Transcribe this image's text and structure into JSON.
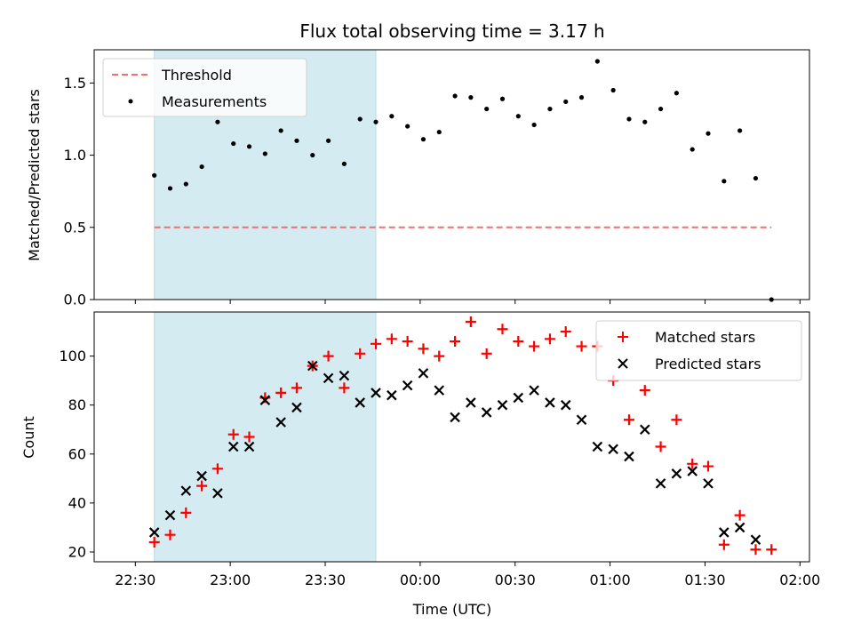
{
  "chart_data": [
    {
      "type": "scatter",
      "title": "Flux total observing time = 3.17 h",
      "xlabel": "",
      "ylabel": "Matched/Predicted stars",
      "ylim": [
        0,
        1.73
      ],
      "yticks": [
        0.0,
        0.5,
        1.0,
        1.5
      ],
      "ytick_labels": [
        "0.0",
        "0.5",
        "1.0",
        "1.5"
      ],
      "shaded_span": [
        "22:36",
        "23:46"
      ],
      "threshold": {
        "name": "Threshold",
        "value": 0.5,
        "x_range": [
          "22:36",
          "01:51"
        ],
        "color": "#f07070"
      },
      "legend_position": "top-left",
      "series": [
        {
          "name": "Measurements",
          "marker": "dot",
          "color": "#000000",
          "x": [
            "22:36",
            "22:41",
            "22:46",
            "22:51",
            "22:56",
            "23:01",
            "23:06",
            "23:11",
            "23:16",
            "23:21",
            "23:26",
            "23:31",
            "23:36",
            "23:41",
            "23:46",
            "23:51",
            "23:56",
            "00:01",
            "00:06",
            "00:11",
            "00:16",
            "00:21",
            "00:26",
            "00:31",
            "00:36",
            "00:41",
            "00:46",
            "00:51",
            "00:56",
            "01:01",
            "01:06",
            "01:11",
            "01:16",
            "01:21",
            "01:26",
            "01:31",
            "01:36",
            "01:41",
            "01:46",
            "01:51"
          ],
          "y": [
            0.86,
            0.77,
            0.8,
            0.92,
            1.23,
            1.08,
            1.06,
            1.01,
            1.17,
            1.1,
            1.0,
            1.1,
            0.94,
            1.25,
            1.23,
            1.27,
            1.2,
            1.11,
            1.16,
            1.41,
            1.4,
            1.32,
            1.39,
            1.27,
            1.21,
            1.32,
            1.37,
            1.4,
            1.65,
            1.45,
            1.25,
            1.23,
            1.32,
            1.43,
            1.04,
            1.15,
            0.82,
            1.17,
            0.84,
            0.0
          ]
        }
      ]
    },
    {
      "type": "scatter",
      "title": "",
      "xlabel": "Time (UTC)",
      "ylabel": "Count",
      "ylim": [
        16,
        118
      ],
      "yticks": [
        20,
        40,
        60,
        80,
        100
      ],
      "ytick_labels": [
        "20",
        "40",
        "60",
        "80",
        "100"
      ],
      "xlim": [
        "22:30",
        "02:00"
      ],
      "xticks": [
        "22:30",
        "23:00",
        "23:30",
        "00:00",
        "00:30",
        "01:00",
        "01:30",
        "02:00"
      ],
      "xtick_labels": [
        "22:30",
        "23:00",
        "23:30",
        "00:00",
        "00:30",
        "01:00",
        "01:30",
        "02:00"
      ],
      "legend_position": "top-right",
      "series": [
        {
          "name": "Matched stars",
          "marker": "plus",
          "color": "#ff0000",
          "x": [
            "22:36",
            "22:41",
            "22:46",
            "22:51",
            "22:56",
            "23:01",
            "23:06",
            "23:11",
            "23:16",
            "23:21",
            "23:26",
            "23:31",
            "23:36",
            "23:41",
            "23:46",
            "23:51",
            "23:56",
            "00:01",
            "00:06",
            "00:11",
            "00:16",
            "00:21",
            "00:26",
            "00:31",
            "00:36",
            "00:41",
            "00:46",
            "00:51",
            "00:56",
            "01:01",
            "01:06",
            "01:11",
            "01:16",
            "01:21",
            "01:26",
            "01:31",
            "01:36",
            "01:41",
            "01:46",
            "01:51"
          ],
          "y": [
            24,
            27,
            36,
            47,
            54,
            68,
            67,
            83,
            85,
            87,
            96,
            100,
            87,
            101,
            105,
            107,
            106,
            103,
            100,
            106,
            114,
            101,
            111,
            106,
            104,
            107,
            110,
            104,
            104,
            90,
            74,
            86,
            63,
            74,
            56,
            55,
            23,
            35,
            21,
            21
          ]
        },
        {
          "name": "Predicted stars",
          "marker": "x",
          "color": "#000000",
          "x": [
            "22:36",
            "22:41",
            "22:46",
            "22:51",
            "22:56",
            "23:01",
            "23:06",
            "23:11",
            "23:16",
            "23:21",
            "23:26",
            "23:31",
            "23:36",
            "23:41",
            "23:46",
            "23:51",
            "23:56",
            "00:01",
            "00:06",
            "00:11",
            "00:16",
            "00:21",
            "00:26",
            "00:31",
            "00:36",
            "00:41",
            "00:46",
            "00:51",
            "00:56",
            "01:01",
            "01:06",
            "01:11",
            "01:16",
            "01:21",
            "01:26",
            "01:31",
            "01:36",
            "01:41",
            "01:46"
          ],
          "y": [
            28,
            35,
            45,
            51,
            44,
            63,
            63,
            82,
            73,
            79,
            96,
            91,
            92,
            81,
            85,
            84,
            88,
            93,
            86,
            75,
            81,
            77,
            80,
            83,
            86,
            81,
            80,
            74,
            63,
            62,
            59,
            70,
            48,
            52,
            53,
            48,
            28,
            30,
            25
          ]
        }
      ]
    }
  ],
  "colors": {
    "shade": "#d4ebf1",
    "shade_edge": "#b9dce6"
  }
}
